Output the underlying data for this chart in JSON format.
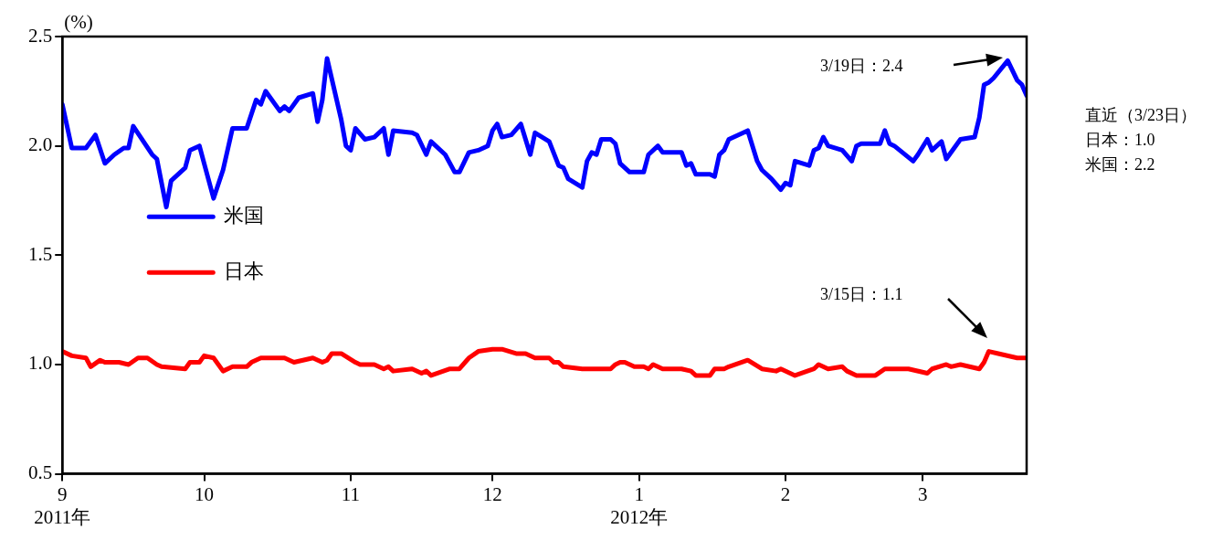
{
  "chart_data": {
    "type": "line",
    "ylabel": "(%)",
    "marker": "none",
    "legend": "center left",
    "xlim": [
      "2011-09-01",
      "2012-03-23"
    ],
    "xticks": [
      {
        "value": "2011-09-01",
        "label": "9\n2011年"
      },
      {
        "value": "2011-10-01",
        "label": "10"
      },
      {
        "value": "2011-11-01",
        "label": "11"
      },
      {
        "value": "2011-12-01",
        "label": "12"
      },
      {
        "value": "2012-01-01",
        "label": "1\n2012年"
      },
      {
        "value": "2012-02-01",
        "label": "2"
      },
      {
        "value": "2012-03-01",
        "label": "3"
      }
    ],
    "ylim": [
      0.5,
      2.5
    ],
    "yticks": [
      0.5,
      {
        "value": 1,
        "label": "1.0"
      },
      1.5,
      {
        "value": 2,
        "label": "2.0"
      },
      2.5
    ],
    "series": [
      {
        "name": "米国",
        "color": "#0000ff",
        "x": [
          "2011-09-01",
          "2011-09-03",
          "2011-09-06",
          "2011-09-08",
          "2011-09-10",
          "2011-09-12",
          "2011-09-14",
          "2011-09-15",
          "2011-09-16",
          "2011-09-20",
          "2011-09-21",
          "2011-09-23",
          "2011-09-24",
          "2011-09-27",
          "2011-09-28",
          "2011-09-30",
          "2011-10-01",
          "2011-10-03",
          "2011-10-05",
          "2011-10-07",
          "2011-10-10",
          "2011-10-12",
          "2011-10-13",
          "2011-10-14",
          "2011-10-17",
          "2011-10-18",
          "2011-10-19",
          "2011-10-21",
          "2011-10-24",
          "2011-10-25",
          "2011-10-26",
          "2011-10-27",
          "2011-10-30",
          "2011-10-31",
          "2011-11-01",
          "2011-11-02",
          "2011-11-04",
          "2011-11-06",
          "2011-11-08",
          "2011-11-09",
          "2011-11-10",
          "2011-11-14",
          "2011-11-15",
          "2011-11-17",
          "2011-11-18",
          "2011-11-21",
          "2011-11-23",
          "2011-11-24",
          "2011-11-26",
          "2011-11-28",
          "2011-11-30",
          "2011-12-01",
          "2011-12-02",
          "2011-12-03",
          "2011-12-05",
          "2011-12-07",
          "2011-12-09",
          "2011-12-10",
          "2011-12-13",
          "2011-12-15",
          "2011-12-16",
          "2011-12-17",
          "2011-12-20",
          "2011-12-21",
          "2011-12-22",
          "2011-12-23",
          "2011-12-24",
          "2011-12-26",
          "2011-12-27",
          "2011-12-28",
          "2011-12-30",
          "2012-01-02",
          "2012-01-03",
          "2012-01-05",
          "2012-01-06",
          "2012-01-09",
          "2012-01-10",
          "2012-01-11",
          "2012-01-12",
          "2012-01-13",
          "2012-01-16",
          "2012-01-17",
          "2012-01-18",
          "2012-01-19",
          "2012-01-20",
          "2012-01-24",
          "2012-01-26",
          "2012-01-27",
          "2012-01-29",
          "2012-01-31",
          "2012-02-01",
          "2012-02-02",
          "2012-02-03",
          "2012-02-06",
          "2012-02-07",
          "2012-02-08",
          "2012-02-09",
          "2012-02-10",
          "2012-02-13",
          "2012-02-15",
          "2012-02-16",
          "2012-02-17",
          "2012-02-21",
          "2012-02-22",
          "2012-02-23",
          "2012-02-24",
          "2012-02-28",
          "2012-02-29",
          "2012-03-02",
          "2012-03-03",
          "2012-03-05",
          "2012-03-06",
          "2012-03-09",
          "2012-03-12",
          "2012-03-13",
          "2012-03-14",
          "2012-03-15",
          "2012-03-16",
          "2012-03-19",
          "2012-03-21",
          "2012-03-22",
          "2012-03-23"
        ],
        "values": [
          2.19,
          1.99,
          1.99,
          2.05,
          1.92,
          1.96,
          1.99,
          1.99,
          2.09,
          1.96,
          1.94,
          1.72,
          1.84,
          1.9,
          1.98,
          2.0,
          1.92,
          1.76,
          1.89,
          2.08,
          2.08,
          2.21,
          2.19,
          2.25,
          2.16,
          2.18,
          2.16,
          2.22,
          2.24,
          2.11,
          2.21,
          2.4,
          2.12,
          2.0,
          1.98,
          2.08,
          2.03,
          2.04,
          2.08,
          1.96,
          2.07,
          2.06,
          2.05,
          1.96,
          2.02,
          1.96,
          1.88,
          1.88,
          1.97,
          1.98,
          2.0,
          2.07,
          2.1,
          2.04,
          2.05,
          2.1,
          1.96,
          2.06,
          2.02,
          1.91,
          1.9,
          1.85,
          1.81,
          1.93,
          1.97,
          1.96,
          2.03,
          2.03,
          2.01,
          1.92,
          1.88,
          1.88,
          1.96,
          2.0,
          1.97,
          1.97,
          1.97,
          1.91,
          1.92,
          1.87,
          1.87,
          1.86,
          1.96,
          1.98,
          2.03,
          2.07,
          1.93,
          1.89,
          1.85,
          1.8,
          1.83,
          1.82,
          1.93,
          1.91,
          1.98,
          1.99,
          2.04,
          2.0,
          1.98,
          1.93,
          2.0,
          2.01,
          2.01,
          2.07,
          2.01,
          2.0,
          1.93,
          1.96,
          2.03,
          1.98,
          2.02,
          1.94,
          2.03,
          2.04,
          2.13,
          2.28,
          2.29,
          2.31,
          2.39,
          2.3,
          2.28,
          2.23
        ]
      },
      {
        "name": "日本",
        "color": "#ff0000",
        "x": [
          "2011-09-01",
          "2011-09-03",
          "2011-09-06",
          "2011-09-07",
          "2011-09-09",
          "2011-09-10",
          "2011-09-13",
          "2011-09-15",
          "2011-09-17",
          "2011-09-19",
          "2011-09-21",
          "2011-09-22",
          "2011-09-27",
          "2011-09-28",
          "2011-09-30",
          "2011-10-01",
          "2011-10-03",
          "2011-10-05",
          "2011-10-07",
          "2011-10-10",
          "2011-10-11",
          "2011-10-13",
          "2011-10-18",
          "2011-10-20",
          "2011-10-24",
          "2011-10-26",
          "2011-10-27",
          "2011-10-28",
          "2011-10-30",
          "2011-11-02",
          "2011-11-03",
          "2011-11-06",
          "2011-11-08",
          "2011-11-09",
          "2011-11-10",
          "2011-11-14",
          "2011-11-16",
          "2011-11-17",
          "2011-11-18",
          "2011-11-22",
          "2011-11-24",
          "2011-11-26",
          "2011-11-28",
          "2011-12-01",
          "2011-12-02",
          "2011-12-03",
          "2011-12-06",
          "2011-12-08",
          "2011-12-10",
          "2011-12-13",
          "2011-12-14",
          "2011-12-15",
          "2011-12-16",
          "2011-12-20",
          "2011-12-21",
          "2011-12-26",
          "2011-12-27",
          "2011-12-28",
          "2011-12-29",
          "2011-12-31",
          "2012-01-02",
          "2012-01-03",
          "2012-01-04",
          "2012-01-06",
          "2012-01-10",
          "2012-01-12",
          "2012-01-13",
          "2012-01-16",
          "2012-01-17",
          "2012-01-19",
          "2012-01-20",
          "2012-01-24",
          "2012-01-27",
          "2012-01-30",
          "2012-01-31",
          "2012-02-03",
          "2012-02-07",
          "2012-02-08",
          "2012-02-10",
          "2012-02-13",
          "2012-02-14",
          "2012-02-16",
          "2012-02-20",
          "2012-02-22",
          "2012-02-27",
          "2012-03-02",
          "2012-03-03",
          "2012-03-06",
          "2012-03-07",
          "2012-03-09",
          "2012-03-13",
          "2012-03-14",
          "2012-03-15",
          "2012-03-17",
          "2012-03-21",
          "2012-03-23"
        ],
        "values": [
          1.06,
          1.04,
          1.03,
          0.99,
          1.02,
          1.01,
          1.01,
          1.0,
          1.03,
          1.03,
          1.0,
          0.99,
          0.98,
          1.01,
          1.01,
          1.04,
          1.03,
          0.97,
          0.99,
          0.99,
          1.01,
          1.03,
          1.03,
          1.01,
          1.03,
          1.01,
          1.02,
          1.05,
          1.05,
          1.01,
          1.0,
          1.0,
          0.98,
          0.99,
          0.97,
          0.98,
          0.96,
          0.97,
          0.95,
          0.98,
          0.98,
          1.03,
          1.06,
          1.07,
          1.07,
          1.07,
          1.05,
          1.05,
          1.03,
          1.03,
          1.01,
          1.01,
          0.99,
          0.98,
          0.98,
          0.98,
          1.0,
          1.01,
          1.01,
          0.99,
          0.99,
          0.98,
          1.0,
          0.98,
          0.98,
          0.97,
          0.95,
          0.95,
          0.98,
          0.98,
          0.99,
          1.02,
          0.98,
          0.97,
          0.98,
          0.95,
          0.98,
          1.0,
          0.98,
          0.99,
          0.97,
          0.95,
          0.95,
          0.98,
          0.98,
          0.96,
          0.98,
          1.0,
          0.99,
          1.0,
          0.98,
          1.01,
          1.06,
          1.05,
          1.03,
          1.03
        ]
      }
    ],
    "annotations": [
      "3/19日：2.4",
      "3/15日：1.1",
      "直近（3/23日）",
      "日本：1.0",
      "米国：2.2"
    ]
  }
}
